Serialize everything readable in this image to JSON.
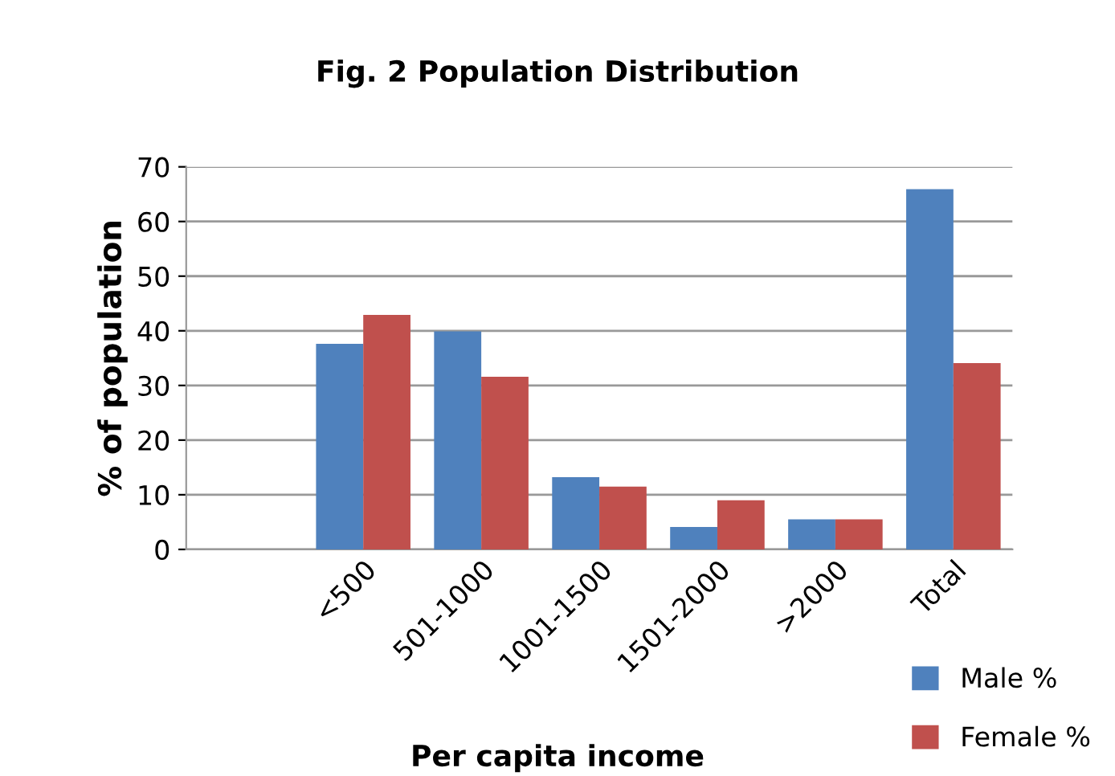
{
  "chart_data": {
    "type": "bar",
    "title": "Fig. 2 Population Distribution",
    "xlabel": "Per capita income",
    "ylabel": "% of population",
    "categories": [
      null,
      "<500",
      "501-1000",
      "1001-1500",
      "1501-2000",
      ">2000",
      "Total"
    ],
    "series": [
      {
        "name": "Male %",
        "color": "#4f81bd",
        "values": [
          null,
          37.6,
          39.9,
          13.2,
          4.1,
          5.5,
          65.9
        ]
      },
      {
        "name": "Female %",
        "color": "#c0504d",
        "values": [
          null,
          42.9,
          31.6,
          11.5,
          9.0,
          5.5,
          34.1
        ]
      }
    ],
    "ylim": [
      0,
      70
    ],
    "yticks": [
      0,
      10,
      20,
      30,
      40,
      50,
      60,
      70
    ],
    "grid": "y",
    "legend": "bottom right"
  }
}
